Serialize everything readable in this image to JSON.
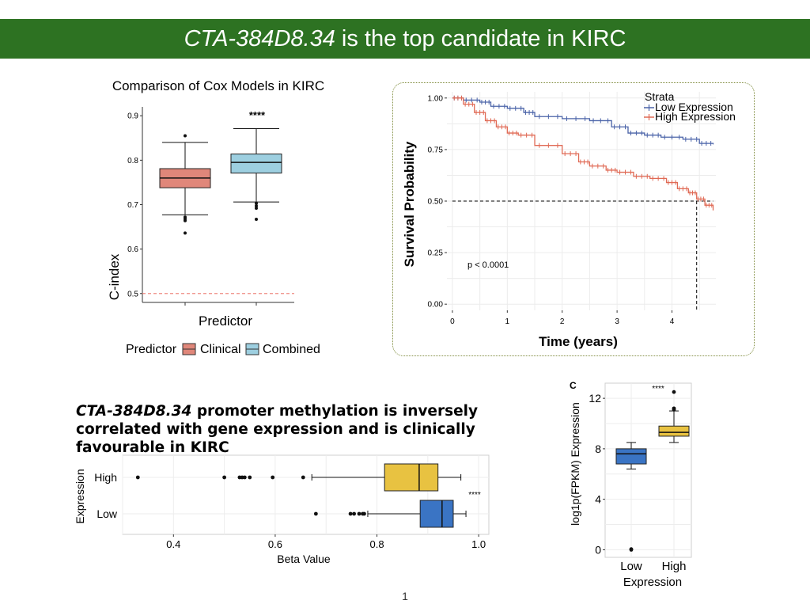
{
  "slide": {
    "title_gene": "CTA-384D8.34",
    "title_rest": " is the top candidate in KIRC",
    "heading_gene": "CTA-384D8.34",
    "heading_rest": " promoter methylation is inversely correlated with gene expression and is clinically favourable in KIRC",
    "page_number": "1",
    "colors": {
      "title_bar": "#2d7222",
      "clinical": "#e0877a",
      "combined": "#9dcfe0",
      "low": "#3a74c4",
      "high": "#e8c241"
    }
  },
  "chart_data": [
    {
      "type": "box",
      "title": "Comparison of Cox Models in KIRC",
      "xlabel": "Predictor",
      "ylabel": "C-index",
      "ylim": [
        0.48,
        0.92
      ],
      "yticks": [
        "0.5",
        "0.6",
        "0.7",
        "0.8",
        "0.9"
      ],
      "legend_title": "Predictor",
      "significance": "****",
      "reference_line": 0.5,
      "series": [
        {
          "name": "Clinical",
          "q1": 0.738,
          "median": 0.76,
          "q3": 0.781,
          "whisker_low": 0.677,
          "whisker_high": 0.84,
          "outliers": [
            0.855,
            0.672,
            0.668,
            0.664,
            0.636
          ]
        },
        {
          "name": "Combined",
          "q1": 0.771,
          "median": 0.795,
          "q3": 0.814,
          "whisker_low": 0.706,
          "whisker_high": 0.871,
          "outliers": [
            0.703,
            0.697,
            0.692,
            0.667
          ]
        }
      ]
    },
    {
      "type": "line",
      "chart": "kaplan-meier",
      "xlabel": "Time (years)",
      "ylabel": "Survival Probability",
      "xlim": [
        -0.1,
        4.8
      ],
      "ylim": [
        -0.03,
        1.03
      ],
      "xticks": [
        "0",
        "1",
        "2",
        "3",
        "4"
      ],
      "yticks": [
        "0.00",
        "0.25",
        "0.50",
        "0.75",
        "1.00"
      ],
      "legend_title": "Strata",
      "annotation": "p < 0.0001",
      "median_survival_high": 4.45,
      "series": [
        {
          "name": "Low Expression",
          "x": [
            0,
            0.2,
            0.5,
            0.7,
            1.0,
            1.3,
            1.5,
            2.0,
            2.5,
            2.9,
            3.2,
            3.5,
            3.8,
            4.2,
            4.5,
            4.75
          ],
          "y": [
            1.0,
            0.99,
            0.98,
            0.96,
            0.95,
            0.93,
            0.91,
            0.9,
            0.89,
            0.86,
            0.83,
            0.82,
            0.81,
            0.8,
            0.78,
            0.775
          ]
        },
        {
          "name": "High Expression",
          "x": [
            0,
            0.2,
            0.4,
            0.6,
            0.8,
            1.0,
            1.2,
            1.5,
            2.0,
            2.3,
            2.5,
            2.8,
            3.0,
            3.3,
            3.6,
            3.9,
            4.1,
            4.3,
            4.45,
            4.6,
            4.75
          ],
          "y": [
            1.0,
            0.97,
            0.93,
            0.89,
            0.86,
            0.83,
            0.82,
            0.77,
            0.73,
            0.69,
            0.67,
            0.65,
            0.64,
            0.62,
            0.61,
            0.59,
            0.56,
            0.54,
            0.51,
            0.48,
            0.455
          ]
        }
      ]
    },
    {
      "type": "box",
      "orientation": "horizontal",
      "xlabel": "Beta Value",
      "ylabel": "Expression",
      "xlim": [
        0.3,
        1.02
      ],
      "xticks": [
        "0.4",
        "0.6",
        "0.8",
        "1.0"
      ],
      "categories": [
        "High",
        "Low"
      ],
      "significance": "****",
      "series": [
        {
          "name": "High",
          "q1": 0.815,
          "median": 0.883,
          "q3": 0.92,
          "whisker_low": 0.672,
          "whisker_high": 0.965,
          "outliers": [
            0.33,
            0.5,
            0.53,
            0.535,
            0.54,
            0.55,
            0.595,
            0.655
          ]
        },
        {
          "name": "Low",
          "q1": 0.885,
          "median": 0.928,
          "q3": 0.95,
          "whisker_low": 0.782,
          "whisker_high": 0.975,
          "outliers": [
            0.68,
            0.748,
            0.755,
            0.765,
            0.772,
            0.775
          ]
        }
      ]
    },
    {
      "type": "box",
      "panel_label": "C",
      "xlabel": "Expression",
      "ylabel": "log1p(FPKM) Expression",
      "ylim": [
        -0.6,
        13.2
      ],
      "yticks": [
        "0",
        "4",
        "8",
        "12"
      ],
      "categories": [
        "Low",
        "High"
      ],
      "significance": "****",
      "series": [
        {
          "name": "Low",
          "q1": 6.8,
          "median": 7.6,
          "q3": 8.0,
          "whisker_low": 6.4,
          "whisker_high": 8.5,
          "outliers": [
            0.05,
            0.0
          ]
        },
        {
          "name": "High",
          "q1": 9.0,
          "median": 9.3,
          "q3": 9.8,
          "whisker_low": 8.5,
          "whisker_high": 11.0,
          "outliers": [
            12.5,
            11.2,
            11.1
          ]
        }
      ]
    }
  ]
}
